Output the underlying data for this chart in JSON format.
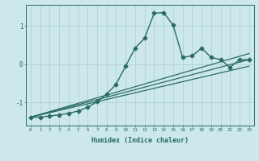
{
  "xlabel": "Humidex (Indice chaleur)",
  "bg_color": "#cce8ec",
  "grid_color": "#aacdd4",
  "line_color": "#2a6b65",
  "xlim": [
    -0.5,
    23.5
  ],
  "ylim": [
    -1.6,
    1.55
  ],
  "yticks": [
    -1,
    0,
    1
  ],
  "xticks": [
    0,
    1,
    2,
    3,
    4,
    5,
    6,
    7,
    8,
    9,
    10,
    11,
    12,
    13,
    14,
    15,
    16,
    17,
    18,
    19,
    20,
    21,
    22,
    23
  ],
  "series_main": {
    "x": [
      0,
      1,
      2,
      3,
      4,
      5,
      6,
      7,
      8,
      9,
      10,
      11,
      12,
      13,
      14,
      15,
      16,
      17,
      18,
      19,
      20,
      21,
      22,
      23
    ],
    "y": [
      -1.38,
      -1.38,
      -1.35,
      -1.32,
      -1.28,
      -1.22,
      -1.12,
      -0.98,
      -0.78,
      -0.52,
      -0.05,
      0.42,
      0.68,
      1.33,
      1.35,
      1.02,
      0.18,
      0.22,
      0.42,
      0.18,
      0.12,
      -0.08,
      0.12,
      0.12
    ],
    "marker": "D",
    "marker_size": 2.5,
    "linewidth": 1.0
  },
  "series_lines": [
    {
      "x0": 0,
      "y0": -1.38,
      "x1": 23,
      "y1": 0.12,
      "linewidth": 0.9
    },
    {
      "x0": 0,
      "y0": -1.38,
      "x1": 23,
      "y1": -0.05,
      "linewidth": 0.9
    },
    {
      "x0": 0,
      "y0": -1.38,
      "x1": 23,
      "y1": 0.28,
      "linewidth": 0.9
    }
  ]
}
